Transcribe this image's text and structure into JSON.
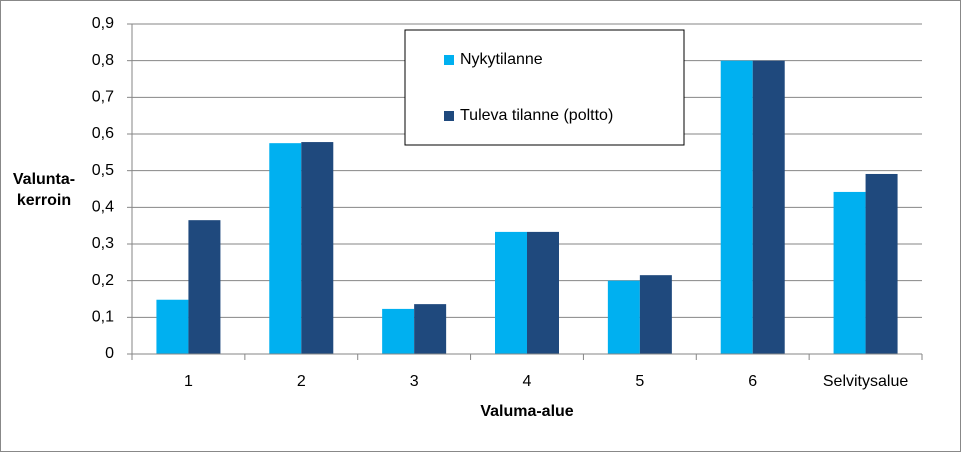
{
  "chart_data": {
    "type": "bar",
    "ylabel": [
      "Valunta-",
      "kerroin"
    ],
    "xlabel": "Valuma-alue",
    "categories": [
      "1",
      "2",
      "3",
      "4",
      "5",
      "6",
      "Selvitysalue"
    ],
    "series": [
      {
        "name": "Nykytilanne",
        "color": "#00b0f0",
        "values": [
          0.148,
          0.575,
          0.123,
          0.333,
          0.2,
          0.8,
          0.442
        ]
      },
      {
        "name": "Tuleva tilanne (poltto)",
        "color": "#1f497d",
        "values": [
          0.365,
          0.578,
          0.136,
          0.333,
          0.215,
          0.8,
          0.491
        ]
      }
    ],
    "ylim": [
      0,
      0.9
    ],
    "yticks": [
      0,
      {
        "value": 0.1,
        "label": "0,1"
      },
      {
        "value": 0.2,
        "label": "0,2"
      },
      {
        "value": 0.3,
        "label": "0,3"
      },
      {
        "value": 0.4,
        "label": "0,4"
      },
      {
        "value": 0.5,
        "label": "0,5"
      },
      {
        "value": 0.6,
        "label": "0,6"
      },
      {
        "value": 0.7,
        "label": "0,7"
      },
      {
        "value": 0.8,
        "label": "0,8"
      },
      {
        "value": 0.9,
        "label": "0,9"
      }
    ],
    "grid": true,
    "legend": "top"
  }
}
